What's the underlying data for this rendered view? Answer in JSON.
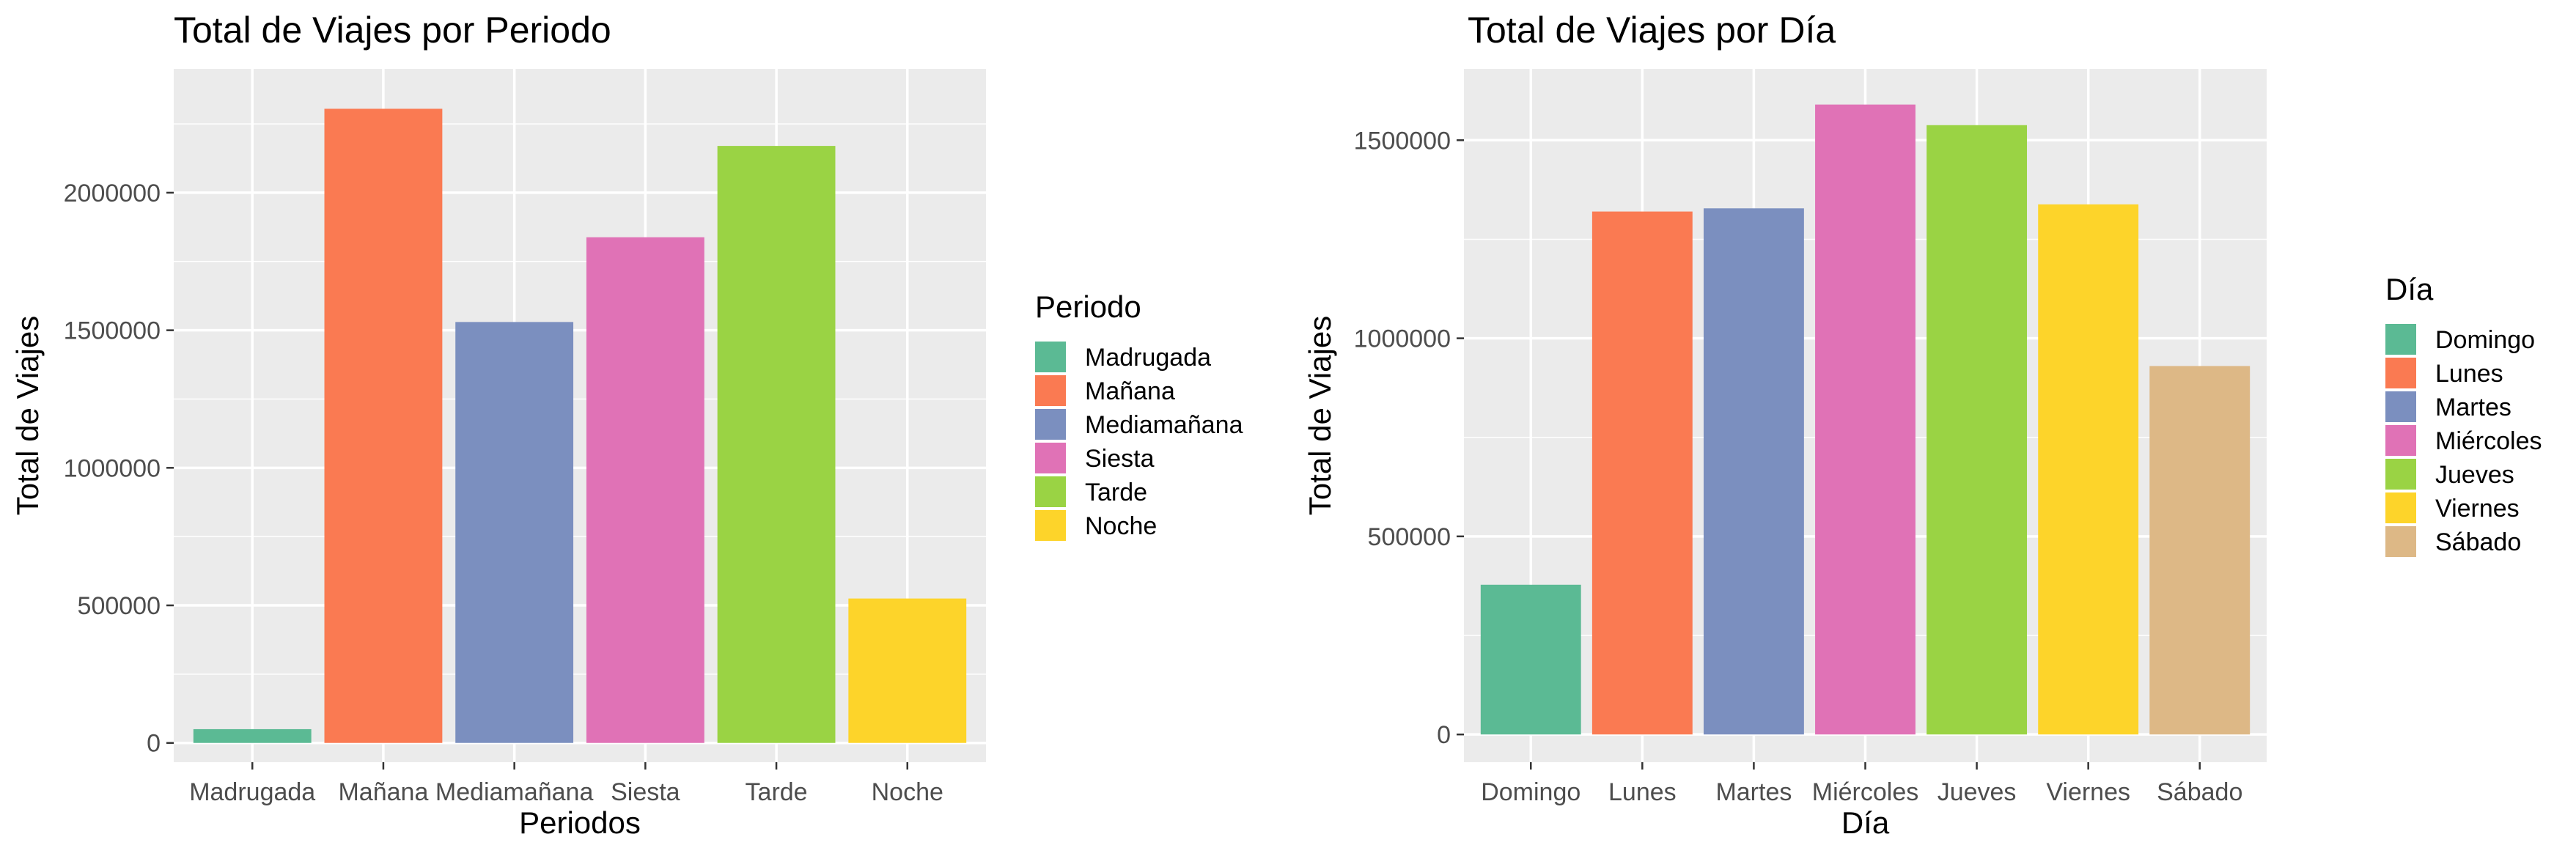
{
  "chart_data": [
    {
      "type": "bar",
      "title": "Total de Viajes por Periodo",
      "xlabel": "Periodos",
      "ylabel": "Total de Viajes",
      "categories": [
        "Madrugada",
        "Mañana",
        "Mediamañana",
        "Siesta",
        "Tarde",
        "Noche"
      ],
      "values": [
        50000,
        2305000,
        1530000,
        1838000,
        2170000,
        525000
      ],
      "colors": [
        "#5BBA94",
        "#FA7A52",
        "#7B8FBF",
        "#E072B6",
        "#9AD344",
        "#FDD42A"
      ],
      "ylim": [
        -70000,
        2450000
      ],
      "yticks": [
        0,
        500000,
        1000000,
        1500000,
        2000000
      ],
      "ytick_labels": [
        "0",
        "500000",
        "1000000",
        "1500000",
        "2000000"
      ],
      "legend_title": "Periodo",
      "legend_position": "right",
      "grid": true
    },
    {
      "type": "bar",
      "title": "Total de Viajes por Día",
      "xlabel": "Día",
      "ylabel": "Total de Viajes",
      "categories": [
        "Domingo",
        "Lunes",
        "Martes",
        "Miércoles",
        "Jueves",
        "Viernes",
        "Sábado"
      ],
      "values": [
        378000,
        1320000,
        1328000,
        1590000,
        1538000,
        1338000,
        930000
      ],
      "colors": [
        "#5BBA94",
        "#FA7A52",
        "#7B8FBF",
        "#E072B6",
        "#9AD344",
        "#FDD42A",
        "#DDB886"
      ],
      "ylim": [
        -70000,
        1680000
      ],
      "yticks": [
        0,
        500000,
        1000000,
        1500000
      ],
      "ytick_labels": [
        "0",
        "500000",
        "1000000",
        "1500000"
      ],
      "legend_title": "Día",
      "legend_position": "right",
      "grid": true
    }
  ]
}
